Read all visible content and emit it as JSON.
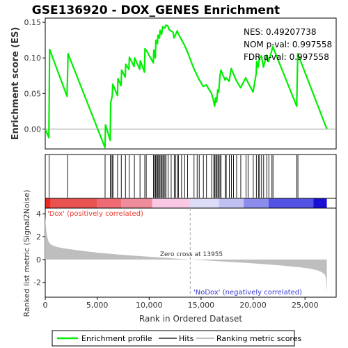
{
  "chart_data": {
    "type": "line",
    "title": "GSE136920 - DOX_GENES Enrichment",
    "stats": {
      "nes": "NES: 0.49207738",
      "pval": "NOM p-val: 0.997558",
      "fdr": "FDR q-val: 0.997558"
    },
    "es_panel": {
      "ylabel": "Enrichment score (ES)",
      "ylim": [
        -0.028,
        0.156
      ],
      "yticks": [
        0.0,
        0.05,
        0.1,
        0.15
      ],
      "ytick_labels": [
        "0.00",
        "0.05",
        "0.10",
        "0.15"
      ]
    },
    "xlim": [
      0,
      28000
    ],
    "xticks": [
      0,
      5000,
      10000,
      15000,
      20000,
      25000
    ],
    "xtick_labels": [
      "0",
      "5,000",
      "10,000",
      "15,000",
      "20,000",
      "25,000"
    ],
    "xlabel": "Rank in Ordered Dataset",
    "series": [
      {
        "name": "Enrichment profile",
        "color": "#00ee00",
        "x": [
          0,
          350,
          420,
          2100,
          2200,
          5750,
          5800,
          6250,
          6300,
          6450,
          6500,
          6950,
          7000,
          7300,
          7350,
          7700,
          7750,
          8050,
          8100,
          8550,
          8600,
          9100,
          9150,
          9550,
          9600,
          9700,
          9750,
          10400,
          10450,
          10600,
          10650,
          10800,
          10850,
          11000,
          11050,
          11200,
          11300,
          11500,
          11600,
          11800,
          11900,
          12300,
          12400,
          12700,
          12800,
          13100,
          13400,
          13700,
          14300,
          14800,
          15200,
          15500,
          16000,
          16200,
          16300,
          16400,
          16500,
          16600,
          16700,
          16800,
          16900,
          17300,
          17400,
          17700,
          17900,
          18100,
          18400,
          18800,
          19300,
          19500,
          20000,
          20300,
          20350,
          20500,
          20600,
          20800,
          21000,
          21300,
          21500,
          21800,
          21900,
          24200,
          24300,
          27100
        ],
        "y": [
          0.0,
          -0.012,
          0.112,
          0.046,
          0.106,
          -0.026,
          0.006,
          -0.016,
          0.037,
          0.047,
          0.063,
          0.047,
          0.071,
          0.061,
          0.083,
          0.073,
          0.091,
          0.084,
          0.101,
          0.088,
          0.1,
          0.084,
          0.096,
          0.08,
          0.113,
          0.111,
          0.11,
          0.093,
          0.111,
          0.1,
          0.125,
          0.12,
          0.132,
          0.128,
          0.139,
          0.133,
          0.144,
          0.142,
          0.146,
          0.145,
          0.14,
          0.136,
          0.128,
          0.138,
          0.134,
          0.126,
          0.118,
          0.108,
          0.085,
          0.07,
          0.06,
          0.062,
          0.05,
          0.04,
          0.032,
          0.044,
          0.038,
          0.055,
          0.052,
          0.072,
          0.083,
          0.069,
          0.072,
          0.067,
          0.085,
          0.078,
          0.068,
          0.058,
          0.072,
          0.066,
          0.052,
          0.078,
          0.095,
          0.087,
          0.099,
          0.103,
          0.087,
          0.104,
          0.095,
          0.11,
          0.116,
          0.032,
          0.106,
          0.0
        ]
      },
      {
        "name": "Hits",
        "color": "#000000",
        "positions": [
          380,
          2150,
          5760,
          6280,
          6350,
          6480,
          6520,
          6960,
          7320,
          7720,
          8080,
          8580,
          9120,
          9580,
          9720,
          10420,
          10520,
          10620,
          10700,
          10820,
          10900,
          11020,
          11120,
          11220,
          11320,
          11420,
          11520,
          11620,
          11820,
          12120,
          12420,
          12550,
          12720,
          12820,
          13120,
          13420,
          13700,
          14320,
          14620,
          14820,
          15220,
          15520,
          16020,
          16220,
          16320,
          16420,
          16520,
          16620,
          16720,
          16820,
          16920,
          17320,
          17420,
          17720,
          17920,
          18120,
          18420,
          18820,
          19320,
          19520,
          20020,
          20320,
          20520,
          20620,
          20820,
          21020,
          21320,
          21520,
          21820,
          21920,
          24220,
          24320
        ]
      },
      {
        "name": "Ranking metric scores",
        "color": "#bebebe",
        "x": [
          0,
          60,
          150,
          300,
          500,
          800,
          1200,
          2000,
          3000,
          5000,
          7000,
          9000,
          11000,
          12500,
          13955,
          15500,
          17000,
          19000,
          21000,
          23000,
          24500,
          25500,
          26200,
          26600,
          26900,
          27000,
          27050,
          27100
        ],
        "y": [
          3.8,
          2.9,
          2.2,
          1.6,
          1.35,
          1.2,
          1.08,
          0.95,
          0.82,
          0.6,
          0.44,
          0.3,
          0.18,
          0.08,
          0.0,
          -0.08,
          -0.17,
          -0.28,
          -0.4,
          -0.55,
          -0.68,
          -0.8,
          -0.95,
          -1.1,
          -1.3,
          -1.6,
          -2.2,
          -2.9
        ]
      }
    ],
    "metric_panel": {
      "ylabel": "Ranked list metric (Signal2Noise)",
      "ylim": [
        -3.3,
        4.5
      ],
      "yticks": [
        -2,
        0,
        2,
        4
      ],
      "ytick_labels": [
        "-2",
        "0",
        "2",
        "4"
      ],
      "zero_cross_label": "Zero cross at 13955",
      "zero_cross": 13955,
      "pos_label": "'Dox' (positively correlated)",
      "neg_label": "'NoDox' (negatively correlated)"
    },
    "heatbar": {
      "segments": [
        {
          "to": 500,
          "color": "#ee2a1f"
        },
        {
          "to": 5000,
          "color": "#ea5252"
        },
        {
          "to": 7300,
          "color": "#ee6b73"
        },
        {
          "to": 10300,
          "color": "#ee8c9c"
        },
        {
          "to": 13900,
          "color": "#f8c8e4"
        },
        {
          "to": 16700,
          "color": "#dcdcf7"
        },
        {
          "to": 19100,
          "color": "#c0c0f3"
        },
        {
          "to": 21500,
          "color": "#8c8ced"
        },
        {
          "to": 25800,
          "color": "#5252e5"
        },
        {
          "to": 27100,
          "color": "#1a10d5"
        }
      ]
    },
    "legend": {
      "items": [
        "Enrichment profile",
        "Hits",
        "Ranking metric scores"
      ]
    }
  }
}
